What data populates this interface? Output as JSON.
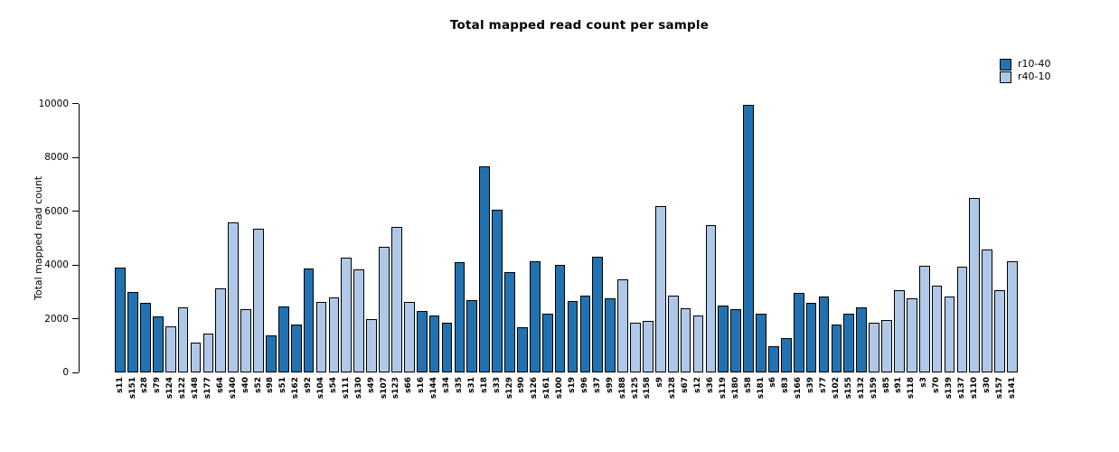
{
  "chart_data": {
    "type": "bar",
    "title": "Total mapped read count per sample",
    "xlabel": "",
    "ylabel": "Total mapped read count",
    "ylim": [
      0,
      10000
    ],
    "yticks": [
      0,
      2000,
      4000,
      6000,
      8000,
      10000
    ],
    "grid": false,
    "legend": {
      "position": "top-right",
      "entries": [
        {
          "label": "r10-40",
          "color": "#2272B2"
        },
        {
          "label": "r40-10",
          "color": "#AFC8E8"
        }
      ]
    },
    "categories": [
      "s11",
      "s151",
      "s28",
      "s79",
      "s124",
      "s122",
      "s148",
      "s177",
      "s64",
      "s140",
      "s40",
      "s52",
      "s98",
      "s51",
      "s162",
      "s92",
      "s104",
      "s54",
      "s111",
      "s130",
      "s49",
      "s107",
      "s123",
      "s66",
      "s16",
      "s144",
      "s34",
      "s35",
      "s31",
      "s18",
      "s33",
      "s129",
      "s90",
      "s126",
      "s161",
      "s100",
      "s19",
      "s96",
      "s37",
      "s99",
      "s188",
      "s125",
      "s158",
      "s9",
      "s128",
      "s67",
      "s12",
      "s36",
      "s119",
      "s180",
      "s58",
      "s181",
      "s6",
      "s83",
      "s166",
      "s39",
      "s77",
      "s102",
      "s155",
      "s132",
      "s159",
      "s85",
      "s91",
      "s118",
      "s3",
      "s70",
      "s139",
      "s137",
      "s110",
      "s30",
      "s157",
      "s141"
    ],
    "values": [
      3890,
      2980,
      2580,
      2100,
      1720,
      2410,
      1100,
      1440,
      3130,
      5570,
      2360,
      5350,
      1370,
      2470,
      1770,
      3850,
      2630,
      2800,
      4280,
      3820,
      2000,
      4670,
      5400,
      2630,
      2270,
      2110,
      1840,
      4110,
      2690,
      7660,
      6040,
      3740,
      1690,
      4130,
      2180,
      4000,
      2640,
      2860,
      4300,
      2770,
      3470,
      1860,
      1920,
      6170,
      2850,
      2380,
      2120,
      5490,
      2490,
      2360,
      9940,
      2170,
      990,
      1270,
      2970,
      2600,
      2810,
      1770,
      2190,
      2420,
      1850,
      1960,
      3050,
      2740,
      3950,
      3240,
      2830,
      3920,
      6500,
      4560,
      3060,
      4150
    ],
    "groups": [
      "r10-40",
      "r10-40",
      "r10-40",
      "r10-40",
      "r40-10",
      "r40-10",
      "r40-10",
      "r40-10",
      "r40-10",
      "r40-10",
      "r40-10",
      "r40-10",
      "r10-40",
      "r10-40",
      "r10-40",
      "r10-40",
      "r40-10",
      "r40-10",
      "r40-10",
      "r40-10",
      "r40-10",
      "r40-10",
      "r40-10",
      "r40-10",
      "r10-40",
      "r10-40",
      "r10-40",
      "r10-40",
      "r10-40",
      "r10-40",
      "r10-40",
      "r10-40",
      "r10-40",
      "r10-40",
      "r10-40",
      "r10-40",
      "r10-40",
      "r10-40",
      "r10-40",
      "r10-40",
      "r40-10",
      "r40-10",
      "r40-10",
      "r40-10",
      "r40-10",
      "r40-10",
      "r40-10",
      "r40-10",
      "r10-40",
      "r10-40",
      "r10-40",
      "r10-40",
      "r10-40",
      "r10-40",
      "r10-40",
      "r10-40",
      "r10-40",
      "r10-40",
      "r10-40",
      "r10-40",
      "r40-10",
      "r40-10",
      "r40-10",
      "r40-10",
      "r40-10",
      "r40-10",
      "r40-10",
      "r40-10",
      "r40-10",
      "r40-10",
      "r40-10",
      "r40-10"
    ]
  }
}
